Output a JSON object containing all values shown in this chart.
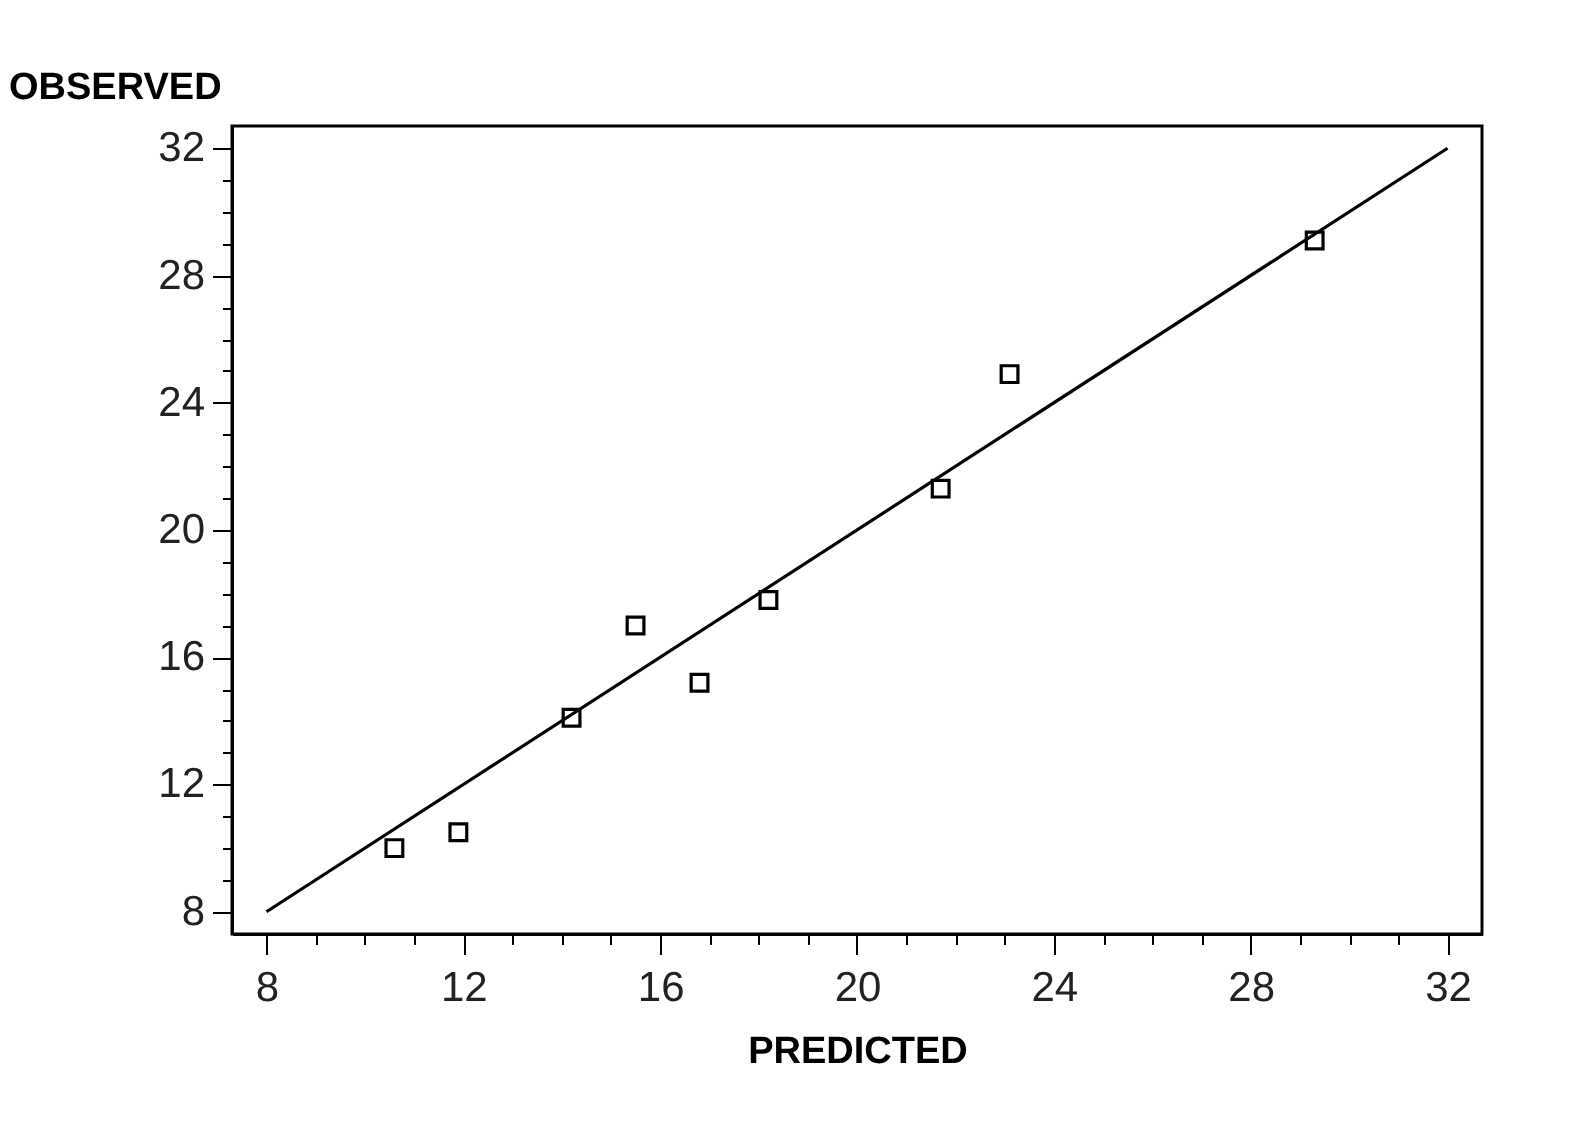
{
  "chart_data": {
    "type": "scatter",
    "xlabel": "PREDICTED",
    "ylabel": "OBSERVED",
    "xlim": [
      7.3,
      32.7
    ],
    "ylim": [
      7.3,
      32.7
    ],
    "xticks": [
      8,
      {
        "value": 9,
        "label": null
      },
      {
        "value": 10,
        "label": null
      },
      {
        "value": 11,
        "label": null
      },
      12,
      {
        "value": 13,
        "label": null
      },
      {
        "value": 14,
        "label": null
      },
      {
        "value": 15,
        "label": null
      },
      16,
      {
        "value": 17,
        "label": null
      },
      {
        "value": 18,
        "label": null
      },
      {
        "value": 19,
        "label": null
      },
      20,
      {
        "value": 21,
        "label": null
      },
      {
        "value": 22,
        "label": null
      },
      {
        "value": 23,
        "label": null
      },
      24,
      {
        "value": 25,
        "label": null
      },
      {
        "value": 26,
        "label": null
      },
      {
        "value": 27,
        "label": null
      },
      28,
      {
        "value": 29,
        "label": null
      },
      {
        "value": 30,
        "label": null
      },
      {
        "value": 31,
        "label": null
      },
      32
    ],
    "yticks": [
      8,
      {
        "value": 9,
        "label": null
      },
      {
        "value": 10,
        "label": null
      },
      {
        "value": 11,
        "label": null
      },
      12,
      {
        "value": 13,
        "label": null
      },
      {
        "value": 14,
        "label": null
      },
      {
        "value": 15,
        "label": null
      },
      16,
      {
        "value": 17,
        "label": null
      },
      {
        "value": 18,
        "label": null
      },
      {
        "value": 19,
        "label": null
      },
      20,
      {
        "value": 21,
        "label": null
      },
      {
        "value": 22,
        "label": null
      },
      {
        "value": 23,
        "label": null
      },
      24,
      {
        "value": 25,
        "label": null
      },
      {
        "value": 26,
        "label": null
      },
      {
        "value": 27,
        "label": null
      },
      28,
      {
        "value": 29,
        "label": null
      },
      {
        "value": 30,
        "label": null
      },
      {
        "value": 31,
        "label": null
      },
      32
    ],
    "series": [
      {
        "marker": "square",
        "color": "#000000",
        "x": [
          10.6,
          11.9,
          14.2,
          15.5,
          16.8,
          18.2,
          21.7,
          23.1,
          29.3
        ],
        "values": [
          10.0,
          10.5,
          14.1,
          17.0,
          15.2,
          17.8,
          21.3,
          24.9,
          29.1
        ]
      },
      {
        "type": "line",
        "marker": "none",
        "color": "#000000",
        "x": [
          8,
          32
        ],
        "values": [
          8,
          32
        ]
      }
    ]
  }
}
